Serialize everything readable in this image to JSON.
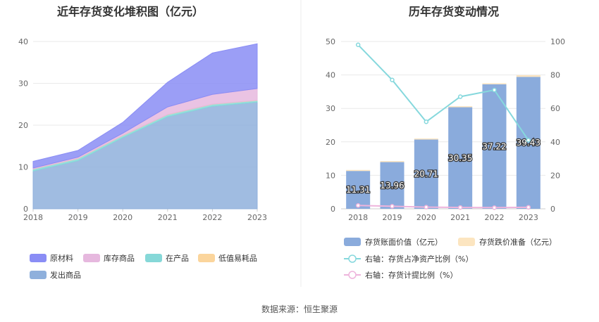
{
  "source": {
    "label": "数据来源：恒生聚源"
  },
  "chart_data": [
    {
      "type": "area",
      "stacked": true,
      "title": "近年存货变化堆积图（亿元）",
      "categories": [
        "2018",
        "2019",
        "2020",
        "2021",
        "2022",
        "2023"
      ],
      "ylim": [
        0,
        40
      ],
      "yticks": [
        0,
        10,
        20,
        30,
        40
      ],
      "grid": true,
      "legend_position": "bottom",
      "series": [
        {
          "name": "发出商品",
          "color": "#8fb0dc",
          "values": [
            9.0,
            11.5,
            17.0,
            22.0,
            24.5,
            25.5
          ]
        },
        {
          "name": "在产品",
          "color": "#86d8d8",
          "values": [
            0.5,
            0.5,
            0.5,
            0.5,
            0.5,
            0.4
          ]
        },
        {
          "name": "低值易耗品",
          "color": "#fbd59c",
          "values": [
            0.05,
            0.05,
            0.05,
            0.05,
            0.05,
            0.05
          ]
        },
        {
          "name": "库存商品",
          "color": "#e6b8de",
          "values": [
            0.2,
            0.3,
            0.5,
            1.8,
            2.3,
            2.8
          ]
        },
        {
          "name": "原材料",
          "color": "#8a8df5",
          "values": [
            1.6,
            1.6,
            2.6,
            5.9,
            9.9,
            10.7
          ]
        }
      ],
      "legend_order": [
        "原材料",
        "库存商品",
        "在产品",
        "低值易耗品",
        "发出商品"
      ]
    },
    {
      "type": "bar",
      "title": "历年存货变动情况",
      "categories": [
        "2018",
        "2019",
        "2020",
        "2021",
        "2022",
        "2023"
      ],
      "ylim": [
        0,
        50
      ],
      "yticks": [
        0,
        10,
        20,
        30,
        40,
        50
      ],
      "y2lim": [
        0,
        100
      ],
      "y2ticks": [
        0,
        20,
        40,
        60,
        80,
        100
      ],
      "grid": true,
      "legend_position": "bottom",
      "bars": {
        "name": "存货账面价值（亿元）",
        "color": "#8aabdc",
        "values": [
          11.31,
          13.96,
          20.71,
          30.35,
          37.22,
          39.43
        ],
        "labels": [
          "11.31",
          "13.96",
          "20.71",
          "30.35",
          "37.22",
          "39.43"
        ]
      },
      "reserve": {
        "name": "存货跌价准备（亿元）",
        "color": "#fce5c0",
        "values": [
          0.3,
          0.3,
          0.3,
          0.3,
          0.3,
          0.5
        ]
      },
      "lines": [
        {
          "name": "右轴：存货占净资产比例（%）",
          "color": "#86d8dd",
          "axis": "right",
          "values": [
            98,
            77,
            52,
            67,
            71,
            41
          ]
        },
        {
          "name": "右轴：存货计提比例（%）",
          "color": "#eeb4dc",
          "axis": "right",
          "values": [
            2,
            1.5,
            1,
            0.8,
            0.7,
            0.9
          ]
        }
      ]
    }
  ]
}
